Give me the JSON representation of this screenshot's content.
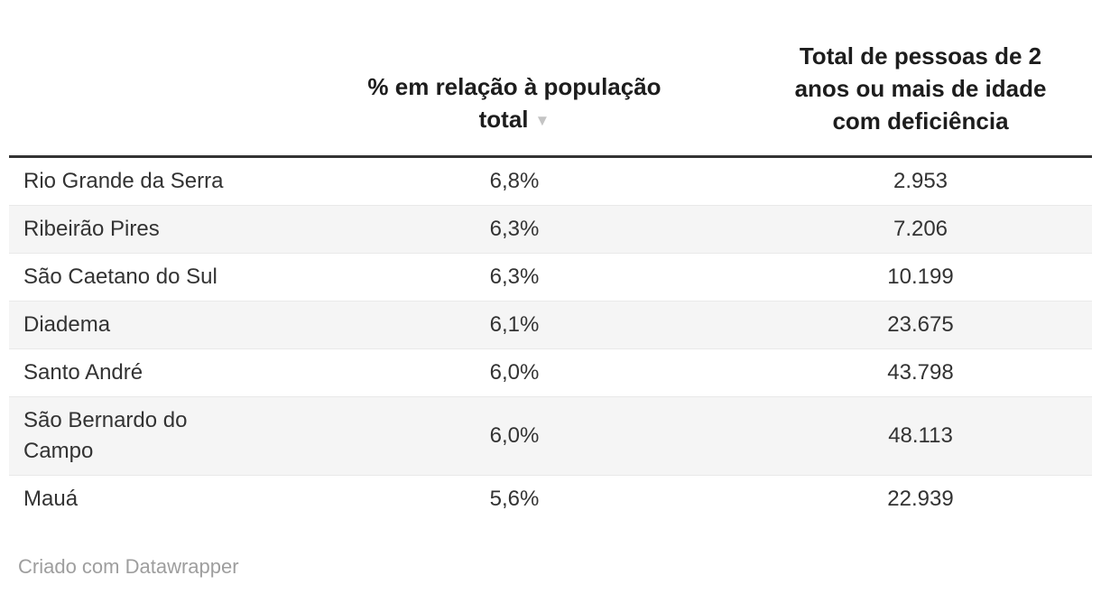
{
  "table": {
    "columns": [
      {
        "label": ""
      },
      {
        "label": "% em relação à população\ntotal",
        "sort_indicator": "▼",
        "sort_direction": "desc"
      },
      {
        "label": "Total de pessoas de 2\nanos ou mais de idade\ncom deficiência"
      }
    ],
    "rows": [
      {
        "name": "Rio Grande da Serra",
        "pct": "6,8%",
        "total": "2.953"
      },
      {
        "name": "Ribeirão Pires",
        "pct": "6,3%",
        "total": "7.206"
      },
      {
        "name": "São Caetano do Sul",
        "pct": "6,3%",
        "total": "10.199"
      },
      {
        "name": "Diadema",
        "pct": "6,1%",
        "total": "23.675"
      },
      {
        "name": "Santo André",
        "pct": "6,0%",
        "total": "43.798"
      },
      {
        "name": "São Bernardo do\nCampo",
        "pct": "6,0%",
        "total": "48.113"
      },
      {
        "name": "Mauá",
        "pct": "5,6%",
        "total": "22.939"
      }
    ]
  },
  "footer": {
    "attribution": "Criado com Datawrapper"
  },
  "colors": {
    "header_text": "#1d1d1d",
    "body_text": "#333333",
    "header_rule": "#333333",
    "row_stripe": "#f5f5f5",
    "row_divider": "#e9e9e9",
    "sort_arrow": "#c4c4c4",
    "attribution_text": "#9e9e9e"
  },
  "chart_data": {
    "type": "table",
    "title": "",
    "columns": [
      "",
      "% em relação à população total",
      "Total de pessoas de 2 anos ou mais de idade com deficiência"
    ],
    "sort": {
      "column": "% em relação à população total",
      "direction": "desc"
    },
    "rows": [
      {
        "municipio": "Rio Grande da Serra",
        "pct_populacao_total": 6.8,
        "total_pessoas_deficiencia": 2953
      },
      {
        "municipio": "Ribeirão Pires",
        "pct_populacao_total": 6.3,
        "total_pessoas_deficiencia": 7206
      },
      {
        "municipio": "São Caetano do Sul",
        "pct_populacao_total": 6.3,
        "total_pessoas_deficiencia": 10199
      },
      {
        "municipio": "Diadema",
        "pct_populacao_total": 6.1,
        "total_pessoas_deficiencia": 23675
      },
      {
        "municipio": "Santo André",
        "pct_populacao_total": 6.0,
        "total_pessoas_deficiencia": 43798
      },
      {
        "municipio": "São Bernardo do Campo",
        "pct_populacao_total": 6.0,
        "total_pessoas_deficiencia": 48113
      },
      {
        "municipio": "Mauá",
        "pct_populacao_total": 5.6,
        "total_pessoas_deficiencia": 22939
      }
    ]
  }
}
